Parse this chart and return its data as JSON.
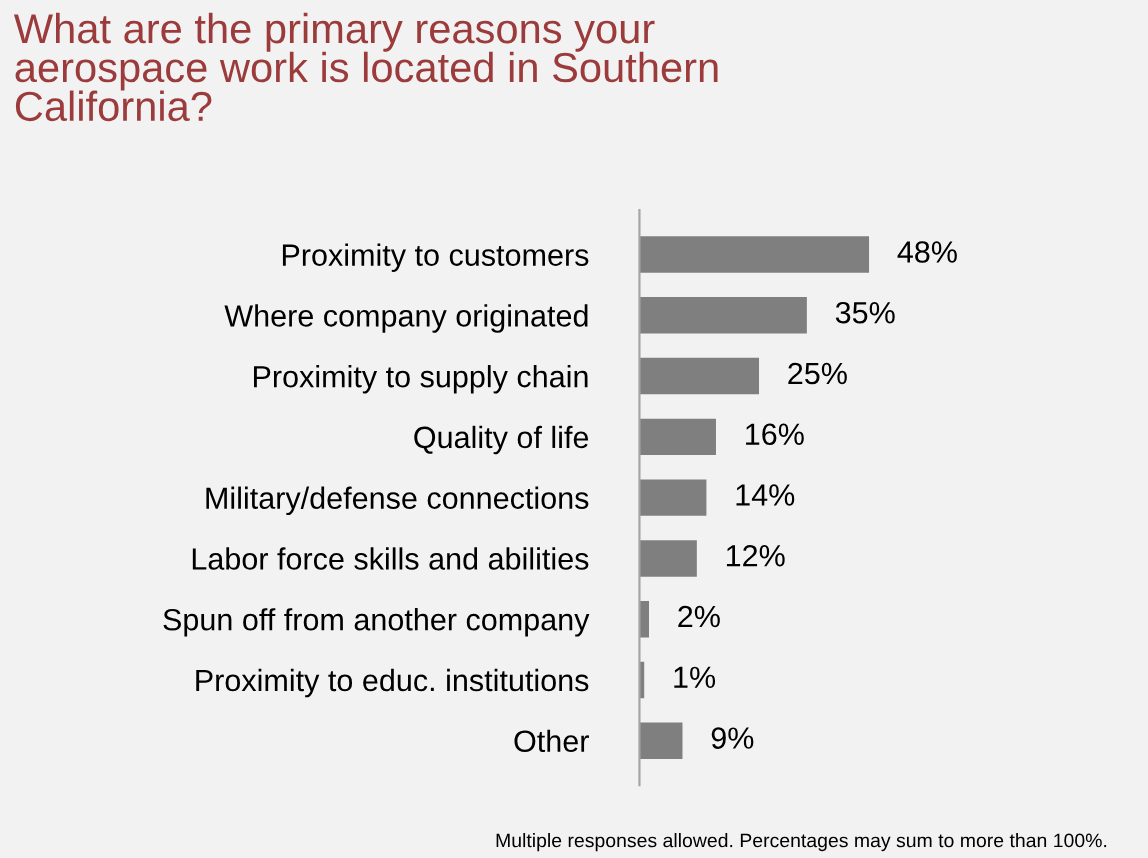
{
  "chart_data": {
    "type": "bar",
    "orientation": "horizontal",
    "title": "What are the primary reasons your\naerospace work is located in Southern\nCalifornia?",
    "categories": [
      "Proximity to customers",
      "Where company originated",
      "Proximity to supply chain",
      "Quality of life",
      "Military/defense connections",
      "Labor force skills and abilities",
      "Spun off from another company",
      "Proximity to educ. institutions",
      "Other"
    ],
    "values": [
      48,
      35,
      25,
      16,
      14,
      12,
      2,
      1,
      9
    ],
    "value_labels": [
      "48%",
      "35%",
      "25%",
      "16%",
      "14%",
      "12%",
      "2%",
      "1%",
      "9%"
    ],
    "color": "#7f7f7f",
    "grid": false,
    "legend": false,
    "annotations": [
      "Multiple responses allowed. Percentages may sum to more than 100%."
    ]
  }
}
